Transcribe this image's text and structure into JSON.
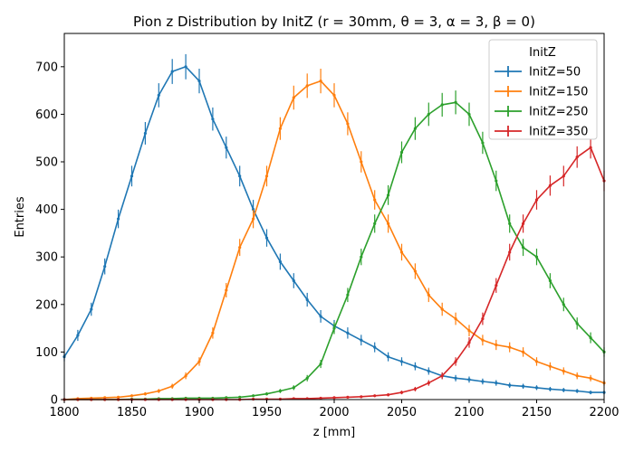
{
  "chart_data": {
    "type": "line",
    "title": "Pion z Distribution by InitZ (r = 30mm, θ = 3, α = 3, β = 0)",
    "xlabel": "z [mm]",
    "ylabel": "Entries",
    "xlim": [
      1800,
      2200
    ],
    "ylim": [
      0,
      770
    ],
    "xticks": [
      1800,
      1850,
      1900,
      1950,
      2000,
      2050,
      2100,
      2150,
      2200
    ],
    "yticks": [
      0,
      100,
      200,
      300,
      400,
      500,
      600,
      700
    ],
    "grid": false,
    "legend": {
      "title": "InitZ",
      "placement": "top-right"
    },
    "style": "step-histogram-with-error-bars",
    "x": [
      1800,
      1810,
      1820,
      1830,
      1840,
      1850,
      1860,
      1870,
      1880,
      1890,
      1900,
      1910,
      1920,
      1930,
      1940,
      1950,
      1960,
      1970,
      1980,
      1990,
      2000,
      2010,
      2020,
      2030,
      2040,
      2050,
      2060,
      2070,
      2080,
      2090,
      2100,
      2110,
      2120,
      2130,
      2140,
      2150,
      2160,
      2170,
      2180,
      2190,
      2200
    ],
    "series": [
      {
        "name": "InitZ=50",
        "color": "#1f77b4",
        "values": [
          90,
          135,
          190,
          280,
          380,
          470,
          560,
          640,
          690,
          700,
          670,
          590,
          530,
          470,
          400,
          340,
          290,
          250,
          210,
          175,
          155,
          140,
          125,
          110,
          90,
          80,
          70,
          60,
          50,
          45,
          42,
          38,
          35,
          30,
          28,
          25,
          22,
          20,
          18,
          15,
          15
        ]
      },
      {
        "name": "InitZ=150",
        "color": "#ff7f0e",
        "values": [
          0,
          2,
          3,
          4,
          5,
          8,
          12,
          18,
          28,
          50,
          80,
          140,
          230,
          320,
          380,
          470,
          570,
          635,
          660,
          670,
          640,
          580,
          500,
          420,
          370,
          310,
          270,
          220,
          190,
          170,
          145,
          125,
          115,
          110,
          100,
          80,
          70,
          60,
          50,
          45,
          35
        ]
      },
      {
        "name": "InitZ=250",
        "color": "#2ca02c",
        "values": [
          0,
          0,
          0,
          0,
          0,
          1,
          1,
          2,
          2,
          3,
          3,
          3,
          4,
          5,
          8,
          12,
          18,
          25,
          45,
          75,
          150,
          220,
          300,
          370,
          430,
          520,
          570,
          600,
          620,
          625,
          600,
          540,
          460,
          370,
          320,
          300,
          250,
          200,
          160,
          130,
          100
        ]
      },
      {
        "name": "InitZ=350",
        "color": "#d62728",
        "values": [
          0,
          0,
          0,
          0,
          0,
          0,
          0,
          0,
          0,
          0,
          0,
          0,
          0,
          0,
          1,
          1,
          1,
          2,
          2,
          3,
          4,
          5,
          6,
          8,
          10,
          15,
          22,
          35,
          50,
          80,
          120,
          170,
          240,
          310,
          370,
          420,
          450,
          470,
          510,
          530,
          460
        ]
      }
    ]
  }
}
